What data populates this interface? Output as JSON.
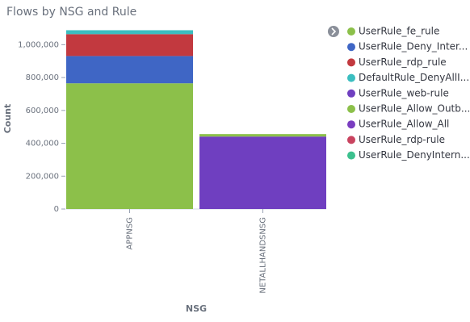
{
  "chart_data": {
    "type": "stacked_bar",
    "title": "Flows by NSG and Rule",
    "x_label": "NSG",
    "y_label": "Count",
    "categories": [
      "APPNSG",
      "NETALLHANDSNSG"
    ],
    "series": [
      {
        "name": "UserRule_fe_rule",
        "color": "#8cc04a",
        "values": [
          765000,
          null
        ]
      },
      {
        "name": "UserRule_Deny_Inter...",
        "color": "#3f66c5",
        "values": [
          166000,
          null
        ]
      },
      {
        "name": "UserRule_rdp_rule",
        "color": "#c2393f",
        "values": [
          133000,
          null
        ]
      },
      {
        "name": "DefaultRule_DenyAllI...",
        "color": "#3bbec0",
        "values": [
          24000,
          null
        ]
      },
      {
        "name": "UserRule_web-rule",
        "color": "#6f3fc0",
        "values": [
          null,
          441000
        ]
      },
      {
        "name": "UserRule_Allow_Outb...",
        "color": "#8cc04a",
        "values": [
          null,
          15000
        ]
      },
      {
        "name": "UserRule_Allow_All",
        "color": "#7a3dc0",
        "values": [
          null,
          null
        ]
      },
      {
        "name": "UserRule_rdp-rule",
        "color": "#c9435f",
        "values": [
          null,
          null
        ]
      },
      {
        "name": "UserRule_DenyIntern...",
        "color": "#3cc08e",
        "values": [
          null,
          null
        ]
      }
    ],
    "ylim": [
      0,
      1100000
    ],
    "yticks": [
      0,
      {
        "value": 200000,
        "label": "200,000"
      },
      {
        "value": 400000,
        "label": "400,000"
      },
      {
        "value": 600000,
        "label": "600,000"
      },
      {
        "value": 800000,
        "label": "800,000"
      },
      {
        "value": 1000000,
        "label": "1,000,000"
      }
    ],
    "grid": false
  }
}
